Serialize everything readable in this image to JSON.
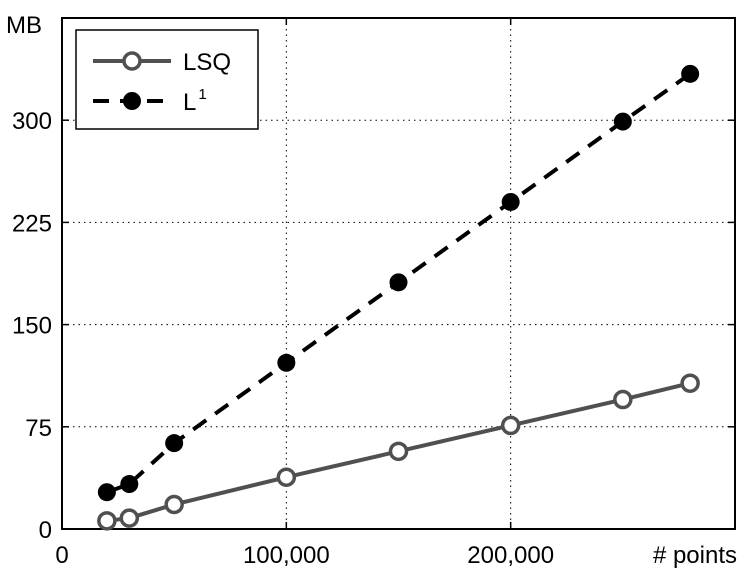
{
  "chart_data": {
    "type": "line",
    "xlabel": "# points",
    "ylabel": "MB",
    "xlim": [
      0,
      300000
    ],
    "ylim": [
      0,
      375
    ],
    "x_ticks": [
      0,
      100000,
      200000
    ],
    "x_tick_labels": [
      "0",
      "100,000",
      "200,000"
    ],
    "y_ticks": [
      0,
      75,
      150,
      225,
      300
    ],
    "y_tick_labels": [
      "0",
      "75",
      "150",
      "225",
      "300"
    ],
    "grid": true,
    "legend_position": "top-left",
    "series": [
      {
        "name": "LSQ",
        "color": "#505050",
        "line_style": "solid",
        "marker": "open-circle",
        "x": [
          20000,
          30000,
          50000,
          100000,
          150000,
          200000,
          250000,
          280000
        ],
        "y": [
          6,
          8,
          18,
          38,
          57,
          76,
          95,
          107
        ]
      },
      {
        "name": "L",
        "name_superscript": "1",
        "color": "#000000",
        "line_style": "dashed",
        "marker": "filled-circle",
        "x": [
          20000,
          30000,
          50000,
          100000,
          150000,
          200000,
          250000,
          280000
        ],
        "y": [
          27,
          33,
          63,
          122,
          181,
          240,
          299,
          334
        ]
      }
    ]
  }
}
